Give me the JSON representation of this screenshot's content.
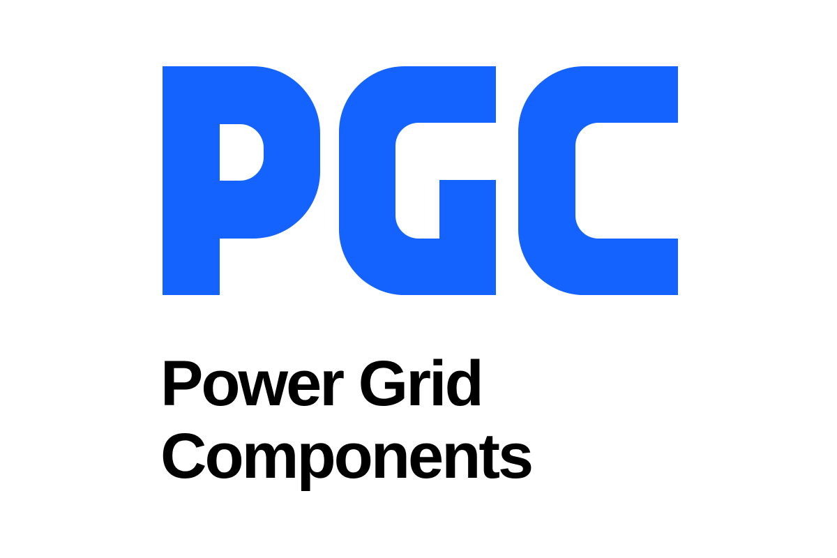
{
  "brand": {
    "initials": "PGC",
    "name_line1": "Power Grid",
    "name_line2": "Components",
    "brand_color": "#1463FF",
    "text_color": "#000000"
  }
}
